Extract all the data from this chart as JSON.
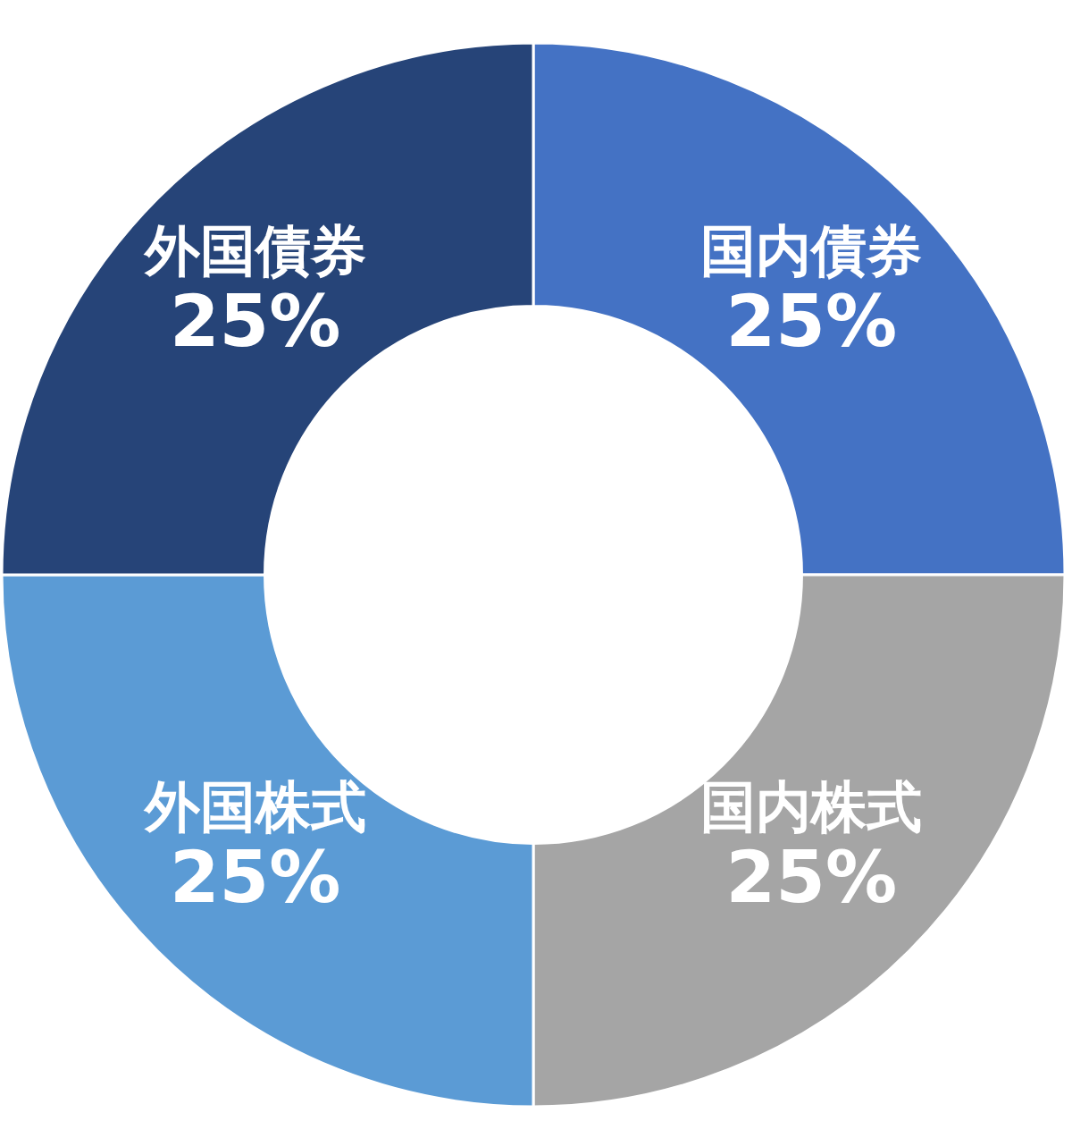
{
  "chart_data": {
    "type": "donut",
    "categories": [
      "国内債券",
      "国内株式",
      "外国株式",
      "外国債券"
    ],
    "values": [
      25,
      25,
      25,
      25
    ],
    "value_labels": [
      "25%",
      "25%",
      "25%",
      "25%"
    ],
    "colors": [
      "#4472c4",
      "#a5a5a5",
      "#5b9bd5",
      "#264478"
    ]
  }
}
